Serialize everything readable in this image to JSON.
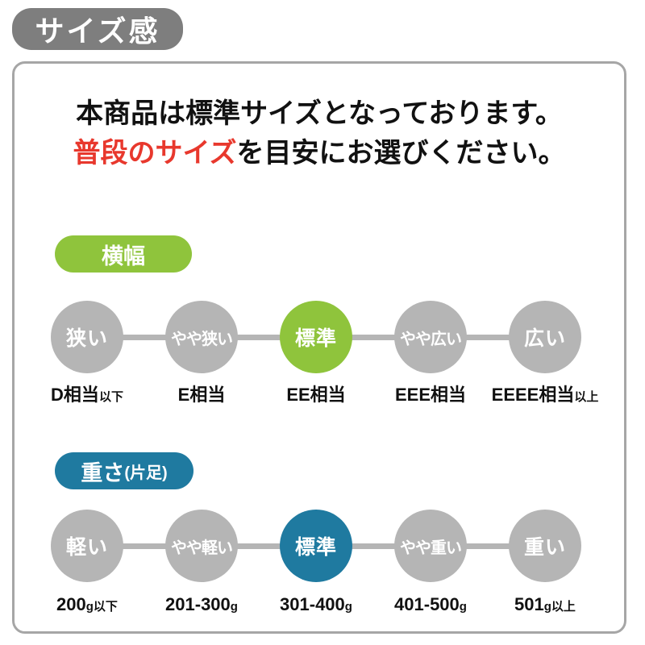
{
  "title_badge": "サイズ感",
  "intro": {
    "line1": "本商品は標準サイズとなっております。",
    "line2_highlight": "普段のサイズ",
    "line2_rest": "を目安にお選びください。"
  },
  "colors": {
    "badge_gray": "#7e7e7e",
    "circle_gray": "#b5b5b5",
    "rail_gray": "#b5b5b5",
    "accent_green": "#8fc43c",
    "accent_blue": "#1f7aa0",
    "highlight_red": "#e8382d",
    "panel_border": "#a6a6a6"
  },
  "sections": [
    {
      "id": "width",
      "badge": {
        "label": "横幅",
        "sub": ""
      },
      "color_key": "accent_green",
      "steps": [
        {
          "circle": "狭い",
          "active": false,
          "label": "D相当",
          "label_suffix": "以下"
        },
        {
          "circle": "やや狭い",
          "active": false,
          "label": "E相当",
          "label_suffix": ""
        },
        {
          "circle": "標準",
          "active": true,
          "label": "EE相当",
          "label_suffix": ""
        },
        {
          "circle": "やや広い",
          "active": false,
          "label": "EEE相当",
          "label_suffix": ""
        },
        {
          "circle": "広い",
          "active": false,
          "label": "EEEE相当",
          "label_suffix": "以上"
        }
      ]
    },
    {
      "id": "weight",
      "badge": {
        "label": "重さ",
        "sub": "(片足)"
      },
      "color_key": "accent_blue",
      "steps": [
        {
          "circle": "軽い",
          "active": false,
          "label": "200",
          "label_suffix": "g以下"
        },
        {
          "circle": "やや軽い",
          "active": false,
          "label": "201-300",
          "label_suffix": "g"
        },
        {
          "circle": "標準",
          "active": true,
          "label": "301-400",
          "label_suffix": "g"
        },
        {
          "circle": "やや重い",
          "active": false,
          "label": "401-500",
          "label_suffix": "g"
        },
        {
          "circle": "重い",
          "active": false,
          "label": "501",
          "label_suffix": "g以上"
        }
      ]
    }
  ]
}
